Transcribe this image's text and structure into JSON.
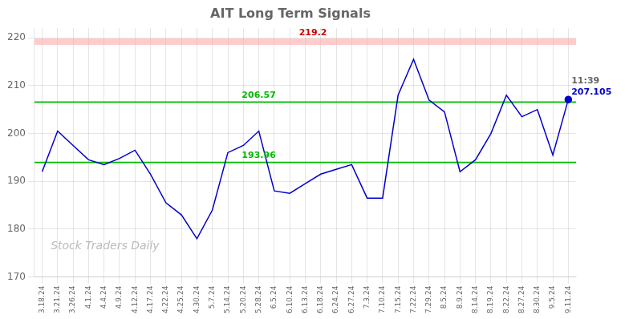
{
  "chart_data": {
    "type": "line",
    "title": "AIT Long Term Signals",
    "categories": [
      "3.18.24",
      "3.21.24",
      "3.26.24",
      "4.1.24",
      "4.4.24",
      "4.9.24",
      "4.12.24",
      "4.17.24",
      "4.22.24",
      "4.25.24",
      "4.30.24",
      "5.7.24",
      "5.14.24",
      "5.20.24",
      "5.28.24",
      "6.5.24",
      "6.10.24",
      "6.13.24",
      "6.18.24",
      "6.24.24",
      "6.27.24",
      "7.3.24",
      "7.10.24",
      "7.15.24",
      "7.22.24",
      "7.29.24",
      "8.5.24",
      "8.9.24",
      "8.14.24",
      "8.19.24",
      "8.22.24",
      "8.27.24",
      "8.30.24",
      "9.5.24",
      "9.11.24"
    ],
    "values": [
      192.0,
      200.5,
      197.5,
      194.5,
      193.5,
      194.8,
      196.5,
      191.5,
      185.5,
      183.0,
      178.0,
      184.0,
      196.0,
      197.5,
      200.5,
      188.0,
      187.5,
      189.5,
      191.5,
      192.5,
      193.5,
      186.5,
      186.5,
      208.0,
      215.5,
      207.0,
      204.5,
      192.0,
      194.5,
      200.0,
      208.0,
      203.5,
      205.0,
      195.5,
      207.105
    ],
    "color": "#0000cc",
    "ylim": [
      170,
      222
    ],
    "yticks": [
      170,
      180,
      190,
      200,
      210,
      220
    ],
    "grid": true,
    "hlines": [
      {
        "value": 219.2,
        "label": "219.2",
        "color": "#ffaaaa",
        "label_color": "#cc0000",
        "line_style": "band"
      },
      {
        "value": 206.57,
        "label": "206.57",
        "color": "#00bb00",
        "label_color": "#00bb00",
        "line_style": "solid"
      },
      {
        "value": 193.96,
        "label": "193.96",
        "color": "#00bb00",
        "label_color": "#00bb00",
        "line_style": "solid"
      }
    ],
    "annotations": [
      {
        "text": "11:39"
      },
      {
        "text": "207.105",
        "value": 207.105,
        "color": "#0000cc"
      }
    ],
    "watermark": {
      "text": "Stock Traders Daily",
      "color": "#bbbbbb"
    }
  }
}
